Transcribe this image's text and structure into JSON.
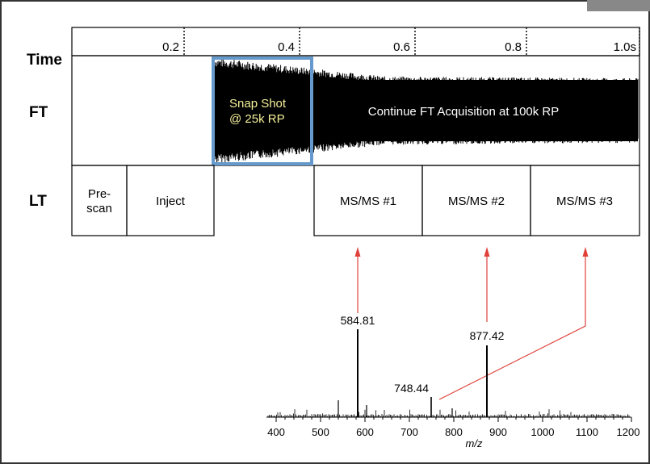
{
  "row_labels": {
    "time": "Time",
    "ft": "FT",
    "lt": "LT"
  },
  "time_ticks": [
    "0.2",
    "0.4",
    "0.6",
    "0.8",
    "1.0s"
  ],
  "ft": {
    "snapshot_line1": "Snap Shot",
    "snapshot_line2": "@ 25k RP",
    "continue_label": "Continue FT Acquisition at 100k RP"
  },
  "lt_boxes": {
    "prescan_line1": "Pre-",
    "prescan_line2": "scan",
    "inject": "Inject",
    "msms1": "MS/MS #1",
    "msms2": "MS/MS #2",
    "msms3": "MS/MS #3"
  },
  "spectrum": {
    "peak_labels": [
      "584.81",
      "877.42",
      "748.44"
    ],
    "axis_ticks": [
      "400",
      "500",
      "600",
      "700",
      "800",
      "900",
      "1000",
      "1100",
      "1200"
    ],
    "axis_title": "m/z"
  },
  "colors": {
    "snapshot_border": "#6699cc",
    "arrow": "#e0403a",
    "corner_tab": "#888888"
  }
}
